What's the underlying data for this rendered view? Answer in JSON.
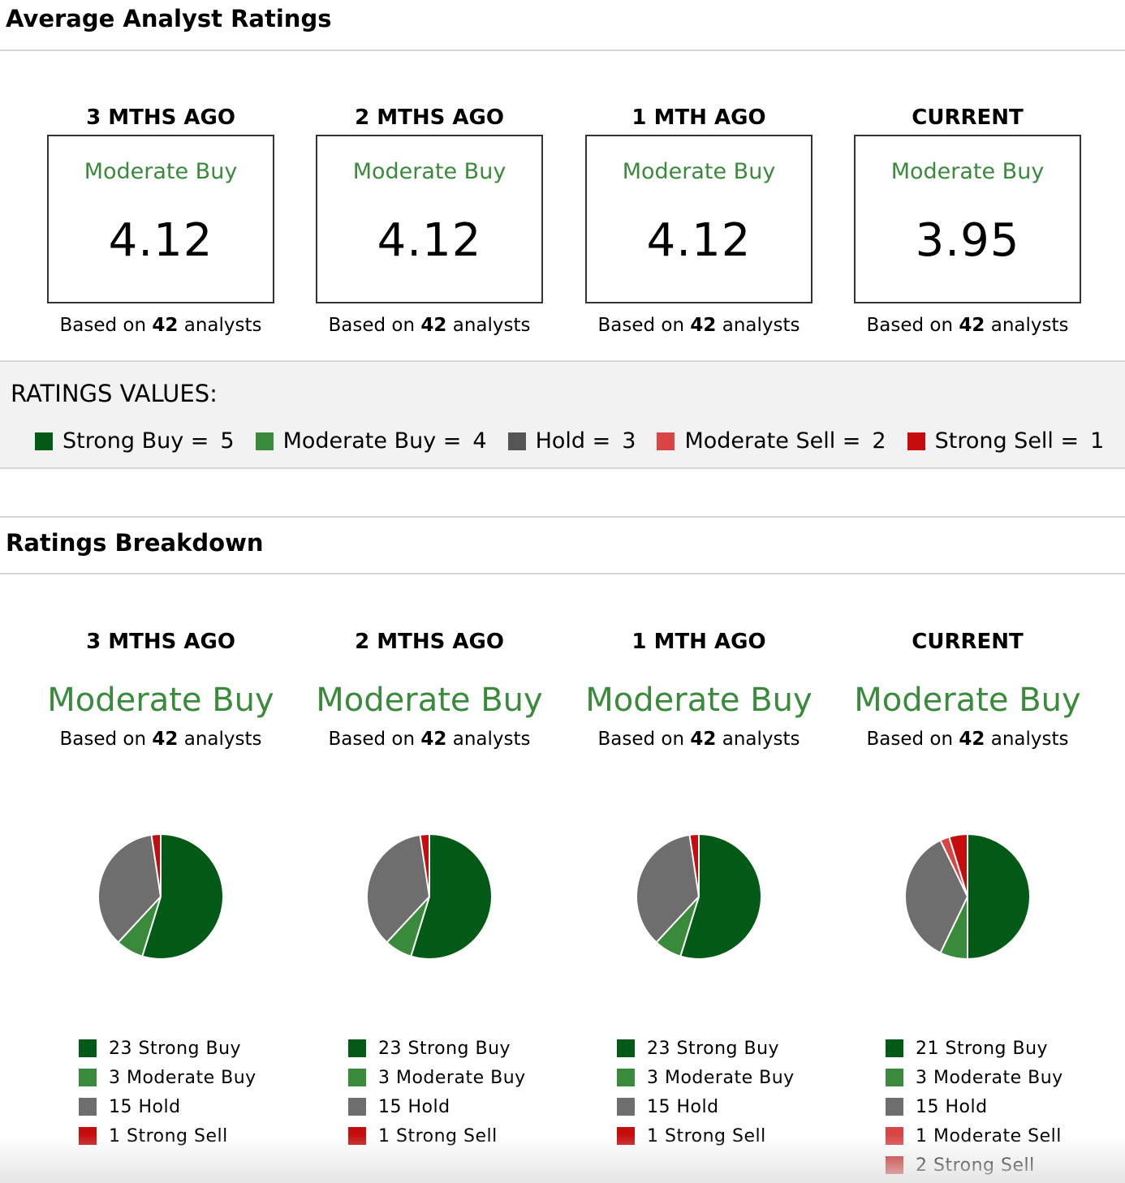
{
  "header": {
    "avg_title": "Average Analyst Ratings",
    "breakdown_title": "Ratings Breakdown"
  },
  "colors": {
    "Strong Buy": "#035a16",
    "Moderate Buy": "#3a8a3c",
    "Hold": "#6e6e6e",
    "Moderate Sell": "#d94545",
    "Strong Sell": "#c50d0d",
    "value_hold": "#555555"
  },
  "values_legend": {
    "title": "RATINGS VALUES:",
    "items": [
      {
        "label": "Strong Buy =",
        "value": "5",
        "color": "#035a16"
      },
      {
        "label": "Moderate Buy =",
        "value": "4",
        "color": "#3a8a3c"
      },
      {
        "label": "Hold =",
        "value": "3",
        "color": "#555555"
      },
      {
        "label": "Moderate Sell =",
        "value": "2",
        "color": "#d94545"
      },
      {
        "label": "Strong Sell =",
        "value": "1",
        "color": "#c50d0d"
      }
    ]
  },
  "periods": [
    {
      "name": "3 MTHS AGO",
      "rating": "Moderate Buy",
      "score": "4.12",
      "based_pre": "Based on",
      "analysts": "42",
      "based_post": "analysts"
    },
    {
      "name": "2 MTHS AGO",
      "rating": "Moderate Buy",
      "score": "4.12",
      "based_pre": "Based on",
      "analysts": "42",
      "based_post": "analysts"
    },
    {
      "name": "1 MTH AGO",
      "rating": "Moderate Buy",
      "score": "4.12",
      "based_pre": "Based on",
      "analysts": "42",
      "based_post": "analysts"
    },
    {
      "name": "CURRENT",
      "rating": "Moderate Buy",
      "score": "3.95",
      "based_pre": "Based on",
      "analysts": "42",
      "based_post": "analysts"
    }
  ],
  "chart_data": [
    {
      "type": "pie",
      "title": "3 MTHS AGO",
      "categories": [
        "Strong Buy",
        "Moderate Buy",
        "Hold",
        "Strong Sell"
      ],
      "values": [
        23,
        3,
        15,
        1
      ],
      "labels": [
        "23 Strong Buy",
        "3 Moderate Buy",
        "15 Hold",
        "1 Strong Sell"
      ]
    },
    {
      "type": "pie",
      "title": "2 MTHS AGO",
      "categories": [
        "Strong Buy",
        "Moderate Buy",
        "Hold",
        "Strong Sell"
      ],
      "values": [
        23,
        3,
        15,
        1
      ],
      "labels": [
        "23 Strong Buy",
        "3 Moderate Buy",
        "15 Hold",
        "1 Strong Sell"
      ]
    },
    {
      "type": "pie",
      "title": "1 MTH AGO",
      "categories": [
        "Strong Buy",
        "Moderate Buy",
        "Hold",
        "Strong Sell"
      ],
      "values": [
        23,
        3,
        15,
        1
      ],
      "labels": [
        "23 Strong Buy",
        "3 Moderate Buy",
        "15 Hold",
        "1 Strong Sell"
      ]
    },
    {
      "type": "pie",
      "title": "CURRENT",
      "categories": [
        "Strong Buy",
        "Moderate Buy",
        "Hold",
        "Moderate Sell",
        "Strong Sell"
      ],
      "values": [
        21,
        3,
        15,
        1,
        2
      ],
      "labels": [
        "21 Strong Buy",
        "3 Moderate Buy",
        "15 Hold",
        "1 Moderate Sell",
        "2 Strong Sell"
      ]
    }
  ]
}
